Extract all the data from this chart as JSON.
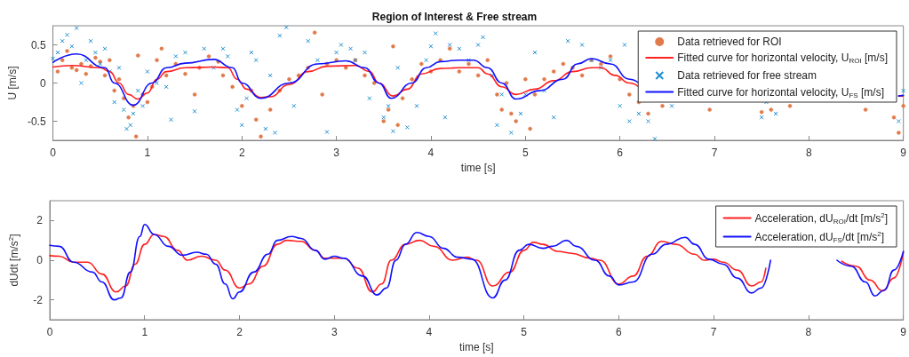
{
  "chart_data": [
    {
      "type": "line",
      "title": "Region of Interest & Free stream",
      "xlabel": "time [s]",
      "ylabel": "U [m/s]",
      "xlim": [
        0,
        9
      ],
      "xticks": [
        0,
        1,
        2,
        3,
        4,
        5,
        6,
        7,
        8,
        9
      ],
      "ylim": [
        -0.75,
        0.75
      ],
      "yticks": [
        -0.5,
        0,
        0.5
      ],
      "grid": false,
      "legend": "top right",
      "series": [
        {
          "type": "scatter",
          "name": "Data retrieved for ROI",
          "color": "#e07a4a",
          "marker": "circle",
          "x": [
            0.05,
            0.1,
            0.15,
            0.2,
            0.25,
            0.3,
            0.35,
            0.4,
            0.45,
            0.5,
            0.55,
            0.6,
            0.65,
            0.7,
            0.75,
            0.8,
            0.85,
            0.88,
            0.9,
            0.95,
            1.0,
            1.05,
            1.1,
            1.15,
            1.2,
            1.3,
            1.4,
            1.5,
            1.55,
            1.65,
            1.75,
            1.8,
            1.9,
            2.0,
            2.1,
            2.15,
            2.2,
            2.3,
            2.4,
            2.5,
            2.6,
            2.7,
            2.77,
            2.85,
            2.9,
            3.0,
            3.1,
            3.2,
            3.3,
            3.4,
            3.5,
            3.55,
            3.6,
            3.65,
            3.7,
            3.8,
            3.9,
            4.0,
            4.1,
            4.2,
            4.3,
            4.4,
            4.5,
            4.6,
            4.7,
            4.75,
            4.8,
            4.85,
            4.9,
            5.0,
            5.05,
            5.1,
            5.2,
            5.3,
            5.4,
            5.5,
            5.6,
            5.7,
            5.8,
            5.9,
            6.0,
            6.1,
            6.2,
            6.3,
            6.45,
            6.95,
            7.5,
            7.6,
            7.8,
            8.6,
            8.9,
            8.95,
            9.0
          ],
          "values": [
            0.15,
            0.3,
            0.42,
            0.2,
            0.17,
            0.25,
            0.12,
            0.22,
            0.33,
            0.28,
            0.1,
            0.3,
            -0.1,
            0.05,
            -0.2,
            -0.45,
            -0.3,
            -0.7,
            0.36,
            -0.15,
            -0.25,
            -0.05,
            0.3,
            0.45,
            0.1,
            0.25,
            0.12,
            -0.15,
            0.2,
            0.35,
            0.28,
            0.1,
            -0.05,
            -0.3,
            -0.1,
            -0.48,
            -0.7,
            -0.35,
            -0.1,
            0.05,
            0.1,
            0.2,
            0.66,
            -0.15,
            0.25,
            0.3,
            0.2,
            0.3,
            0.1,
            0.0,
            -0.5,
            -0.35,
            0.48,
            -0.55,
            -0.2,
            0.05,
            0.25,
            0.15,
            0.3,
            0.45,
            0.15,
            0.25,
            0.1,
            0.3,
            -0.15,
            -0.35,
            0.0,
            -0.4,
            -0.5,
            0.05,
            -0.6,
            -0.15,
            0.05,
            0.15,
            0.25,
            0.2,
            0.1,
            0.3,
            0.25,
            0.35,
            0.05,
            -0.15,
            -0.25,
            -0.4,
            -0.3,
            -0.35,
            -0.38,
            -0.35,
            -0.3,
            -0.35,
            -0.45,
            -0.65,
            -0.3
          ]
        },
        {
          "name": "Fitted curve for horizontal velocity, U$_{ROI}$ [m/s]",
          "color": "#ff2020",
          "marker": "none",
          "x": [
            0,
            0.2,
            0.5,
            0.6,
            0.7,
            0.8,
            0.9,
            1.0,
            1.1,
            1.2,
            1.4,
            1.7,
            1.85,
            1.95,
            2.05,
            2.2,
            2.3,
            2.5,
            2.7,
            2.9,
            3.2,
            3.35,
            3.45,
            3.6,
            3.75,
            3.9,
            4.1,
            4.3,
            4.5,
            4.6,
            4.75,
            4.9,
            5.1,
            5.3,
            5.5,
            5.7,
            5.8,
            5.95,
            6.1,
            6.2,
            7.5,
            8.95,
            9.0
          ],
          "values": [
            0.21,
            0.23,
            0.2,
            0.15,
            0.0,
            -0.15,
            -0.21,
            -0.13,
            0.05,
            0.15,
            0.2,
            0.21,
            0.2,
            0.05,
            -0.08,
            -0.19,
            -0.18,
            -0.02,
            0.15,
            0.22,
            0.23,
            0.15,
            0.0,
            -0.17,
            -0.08,
            0.12,
            0.19,
            0.2,
            0.2,
            0.12,
            -0.05,
            -0.15,
            -0.08,
            0.03,
            0.15,
            0.2,
            0.2,
            0.1,
            0.0,
            -0.05,
            null,
            -0.17,
            -0.17
          ]
        },
        {
          "type": "scatter",
          "name": "Data retrieved for free stream",
          "color": "#1f8fd0",
          "marker": "cross",
          "x": [
            0.0,
            0.05,
            0.1,
            0.15,
            0.2,
            0.25,
            0.3,
            0.35,
            0.4,
            0.45,
            0.5,
            0.55,
            0.6,
            0.65,
            0.7,
            0.75,
            0.78,
            0.82,
            0.85,
            0.9,
            0.95,
            1.0,
            1.1,
            1.2,
            1.25,
            1.3,
            1.4,
            1.5,
            1.6,
            1.7,
            1.8,
            1.85,
            1.95,
            2.0,
            2.05,
            2.1,
            2.15,
            2.25,
            2.3,
            2.35,
            2.4,
            2.47,
            2.55,
            2.7,
            2.8,
            2.9,
            3.0,
            3.05,
            3.15,
            3.2,
            3.3,
            3.35,
            3.5,
            3.55,
            3.6,
            3.65,
            3.75,
            3.85,
            3.95,
            4.0,
            4.05,
            4.15,
            4.2,
            4.3,
            4.4,
            4.5,
            4.55,
            4.65,
            4.7,
            4.75,
            4.85,
            4.95,
            5.0,
            5.1,
            5.2,
            5.3,
            5.45,
            5.6,
            5.7,
            5.8,
            5.9,
            6.0,
            6.05,
            6.1,
            6.2,
            6.3,
            6.37,
            6.55,
            7.5,
            7.55,
            7.65,
            8.95,
            9.0
          ],
          "values": [
            0.32,
            0.4,
            0.55,
            0.63,
            0.48,
            0.72,
            0.0,
            0.3,
            0.55,
            0.4,
            0.25,
            0.45,
            0.15,
            -0.25,
            0.2,
            -0.35,
            -0.6,
            -0.55,
            -0.4,
            -0.1,
            -0.3,
            0.15,
            0.0,
            -0.05,
            -0.48,
            0.35,
            0.4,
            -0.37,
            0.45,
            0.2,
            0.45,
            0.35,
            -0.35,
            -0.55,
            -0.2,
            0.4,
            0.3,
            -0.6,
            0.1,
            -0.65,
            0.62,
            0.73,
            -0.3,
            0.55,
            0.3,
            -0.64,
            0.4,
            0.5,
            0.45,
            0.3,
            0.4,
            -0.2,
            -0.45,
            -0.3,
            -0.63,
            0.2,
            -0.58,
            -0.3,
            0.3,
            0.48,
            0.65,
            -0.45,
            0.5,
            0.45,
            0.3,
            0.5,
            0.6,
            0.1,
            -0.55,
            -0.15,
            -0.65,
            -0.4,
            -0.15,
            0.4,
            -0.1,
            -0.45,
            0.55,
            0.5,
            0.3,
            0.2,
            0.3,
            -0.3,
            0.5,
            -0.5,
            -0.4,
            -0.5,
            -0.73,
            -0.3,
            -0.45,
            -0.25,
            -0.4,
            -0.5,
            -0.1
          ]
        },
        {
          "name": "Fitted curve for horizontal velocity, U$_{FS}$ [m/s]",
          "color": "#1010ff",
          "marker": "none",
          "x": [
            0,
            0.25,
            0.55,
            0.65,
            0.85,
            1.05,
            1.2,
            1.4,
            1.7,
            1.9,
            2.0,
            2.2,
            2.5,
            2.8,
            3.1,
            3.3,
            3.45,
            3.58,
            3.8,
            3.95,
            4.1,
            4.3,
            4.45,
            4.6,
            4.75,
            4.9,
            5.15,
            5.4,
            5.55,
            5.7,
            5.9,
            6.1,
            6.2,
            7.5,
            8.95,
            9.0
          ],
          "values": [
            0.27,
            0.38,
            0.2,
            0.0,
            -0.29,
            0.0,
            0.2,
            0.26,
            0.31,
            0.2,
            0.0,
            -0.2,
            0.0,
            0.25,
            0.29,
            0.2,
            0.0,
            -0.2,
            0.0,
            0.2,
            0.28,
            0.3,
            0.3,
            0.2,
            0.0,
            -0.21,
            -0.1,
            0.05,
            0.25,
            0.32,
            0.25,
            0.05,
            0.0,
            null,
            -0.17,
            -0.16
          ]
        }
      ]
    },
    {
      "type": "line",
      "xlabel": "time [s]",
      "ylabel": "dUdt [m/s$^{2}$]",
      "xlim": [
        0,
        9
      ],
      "xticks": [
        0,
        1,
        2,
        3,
        4,
        5,
        6,
        7,
        8,
        9
      ],
      "ylim": [
        -3,
        3
      ],
      "yticks": [
        -2,
        0,
        2
      ],
      "grid": false,
      "legend": "top right",
      "marker": "none",
      "series": [
        {
          "name": "Acceleration, dU$_{ROI}$/dt [m/s$^{2}$]",
          "color": "#ff2020",
          "x": [
            0,
            0.1,
            0.25,
            0.4,
            0.55,
            0.7,
            0.8,
            0.9,
            1.0,
            1.1,
            1.2,
            1.35,
            1.45,
            1.6,
            1.75,
            1.85,
            2.0,
            2.1,
            2.25,
            2.4,
            2.5,
            2.65,
            2.8,
            2.9,
            3.1,
            3.25,
            3.4,
            3.5,
            3.6,
            3.75,
            3.9,
            4.05,
            4.25,
            4.4,
            4.5,
            4.67,
            4.85,
            5.0,
            5.1,
            5.2,
            5.35,
            5.5,
            5.7,
            5.8,
            6.0,
            6.15,
            6.3,
            6.45,
            6.6,
            6.8,
            6.9,
            7.0,
            7.1,
            7.25,
            7.4,
            7.5,
            7.55,
            8.0,
            8.35,
            8.5,
            8.65,
            8.78,
            8.9,
            9.0
          ],
          "values": [
            0.23,
            0.2,
            -0.1,
            -0.1,
            -0.7,
            -1.6,
            -1.3,
            -0.2,
            0.8,
            1.3,
            1.2,
            0.5,
            0.0,
            0.2,
            0.0,
            -0.5,
            -1.4,
            -1.2,
            -0.3,
            0.8,
            1.0,
            0.95,
            0.5,
            0.1,
            0.1,
            -0.4,
            -1.6,
            -1.2,
            0.0,
            0.8,
            1.0,
            0.7,
            0.0,
            0.15,
            0.0,
            -1.3,
            -0.6,
            0.5,
            0.9,
            0.8,
            0.45,
            0.35,
            0.1,
            0.0,
            -1.2,
            -0.8,
            0.2,
            0.95,
            0.8,
            0.3,
            0.0,
            0.05,
            -0.1,
            -0.5,
            -1.3,
            -1.1,
            -0.4,
            null,
            -0.05,
            -0.3,
            -1.0,
            -1.55,
            -0.9,
            0.4
          ]
        },
        {
          "name": "Acceleration, dU$_{FS}$/dt [m/s$^{2}$]",
          "color": "#1010ff",
          "x": [
            0,
            0.1,
            0.25,
            0.45,
            0.55,
            0.68,
            0.75,
            0.85,
            0.95,
            1.0,
            1.1,
            1.25,
            1.4,
            1.55,
            1.65,
            1.75,
            1.85,
            1.93,
            2.0,
            2.15,
            2.3,
            2.4,
            2.55,
            2.65,
            2.8,
            2.9,
            3.0,
            3.1,
            3.3,
            3.45,
            3.55,
            3.65,
            3.75,
            3.87,
            4.0,
            4.15,
            4.3,
            4.45,
            4.67,
            4.8,
            4.95,
            5.05,
            5.2,
            5.3,
            5.45,
            5.55,
            5.75,
            5.9,
            6.0,
            6.15,
            6.35,
            6.5,
            6.7,
            6.8,
            6.95,
            7.1,
            7.25,
            7.4,
            7.5,
            7.6,
            8.0,
            8.3,
            8.45,
            8.6,
            8.7,
            8.8,
            8.9,
            9.0
          ],
          "values": [
            0.75,
            0.7,
            -0.1,
            -0.6,
            -1.1,
            -2.0,
            -1.9,
            -0.6,
            1.2,
            1.8,
            1.3,
            0.7,
            0.25,
            0.4,
            0.3,
            -0.2,
            -1.2,
            -1.95,
            -1.6,
            -0.6,
            0.3,
            1.0,
            1.2,
            1.1,
            0.5,
            0.05,
            0.2,
            0.1,
            -0.8,
            -1.75,
            -1.4,
            0.0,
            0.8,
            1.4,
            1.2,
            0.6,
            0.15,
            0.05,
            -1.9,
            -1.0,
            0.5,
            0.8,
            0.6,
            0.7,
            1.0,
            0.7,
            0.0,
            -0.8,
            -1.25,
            -1.1,
            0.3,
            0.8,
            1.15,
            0.8,
            0.05,
            -0.2,
            -0.9,
            -1.65,
            -1.4,
            0.0,
            null,
            0.0,
            -0.3,
            -1.1,
            -1.8,
            -1.5,
            -0.5,
            0.45
          ]
        }
      ]
    }
  ]
}
